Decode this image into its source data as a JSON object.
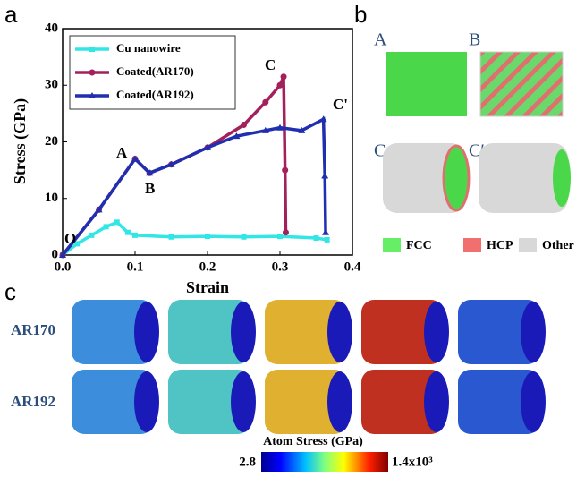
{
  "chart_data": {
    "type": "line",
    "panel_label": "a",
    "xlabel": "Strain",
    "ylabel": "Stress (GPa)",
    "xlim": [
      0,
      0.4
    ],
    "ylim": [
      0,
      40
    ],
    "xticks": [
      {
        "value": 0,
        "label": "0.0"
      },
      0.1,
      0.2,
      0.3,
      0.4
    ],
    "yticks": [
      0,
      10,
      20,
      30,
      40
    ],
    "legend": "upper left",
    "annotations": [
      "O",
      "A",
      "B",
      "C",
      "C'"
    ],
    "series": [
      {
        "name": "Cu nanowire",
        "color": "#33e6e6",
        "marker": "square",
        "x": [
          0,
          0.02,
          0.04,
          0.06,
          0.075,
          0.09,
          0.1,
          0.15,
          0.2,
          0.25,
          0.3,
          0.35,
          0.365
        ],
        "values": [
          0,
          2,
          3.5,
          5,
          5.8,
          4,
          3.5,
          3.2,
          3.3,
          3.2,
          3.3,
          3,
          2.7
        ]
      },
      {
        "name": "Coated(AR170)",
        "color": "#a3205c",
        "marker": "circle",
        "x": [
          0,
          0.05,
          0.1,
          0.12,
          0.15,
          0.2,
          0.25,
          0.28,
          0.3,
          0.305,
          0.307,
          0.308
        ],
        "values": [
          0,
          8,
          17,
          14.5,
          16,
          19,
          23,
          27,
          30,
          31.5,
          15,
          4
        ]
      },
      {
        "name": "Coated(AR192)",
        "color": "#1f2fb0",
        "marker": "triangle",
        "x": [
          0,
          0.05,
          0.1,
          0.12,
          0.15,
          0.2,
          0.24,
          0.28,
          0.3,
          0.33,
          0.36,
          0.362,
          0.363
        ],
        "values": [
          0,
          8,
          17,
          14.5,
          16,
          19,
          21,
          22,
          22.5,
          22,
          24,
          14,
          4
        ]
      }
    ]
  },
  "panel_b": {
    "panel_label": "b",
    "image_labels": [
      "A",
      "B",
      "C",
      "C′"
    ],
    "legend": [
      "FCC",
      "HCP",
      "Other"
    ]
  },
  "panel_c": {
    "panel_label": "c",
    "row_labels": [
      "AR170",
      "AR192"
    ],
    "colorbar_title": "Atom Stress (GPa)",
    "colorbar_min": "2.8",
    "colorbar_max": "1.4x10³"
  }
}
